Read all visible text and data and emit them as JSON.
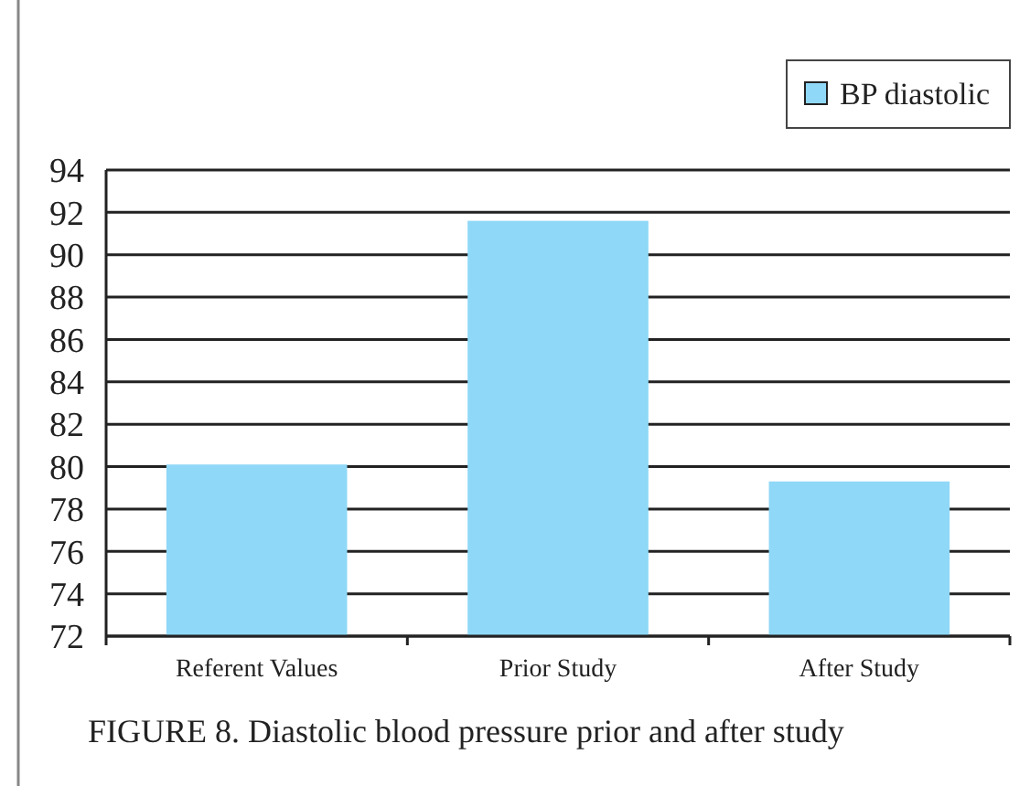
{
  "chart_data": {
    "type": "bar",
    "categories": [
      "Referent Values",
      "Prior Study",
      "After Study"
    ],
    "series": [
      {
        "name": "BP diastolic",
        "color": "#8fd8f7",
        "values": [
          80.1,
          91.6,
          79.3
        ]
      }
    ],
    "ylim": [
      72,
      94
    ],
    "yticks": [
      72,
      74,
      76,
      78,
      80,
      82,
      84,
      86,
      88,
      90,
      92,
      94
    ],
    "grid": "y",
    "legend": "top right",
    "annotations": [
      "FIGURE 8.  Diastolic blood pressure prior and after study"
    ]
  }
}
